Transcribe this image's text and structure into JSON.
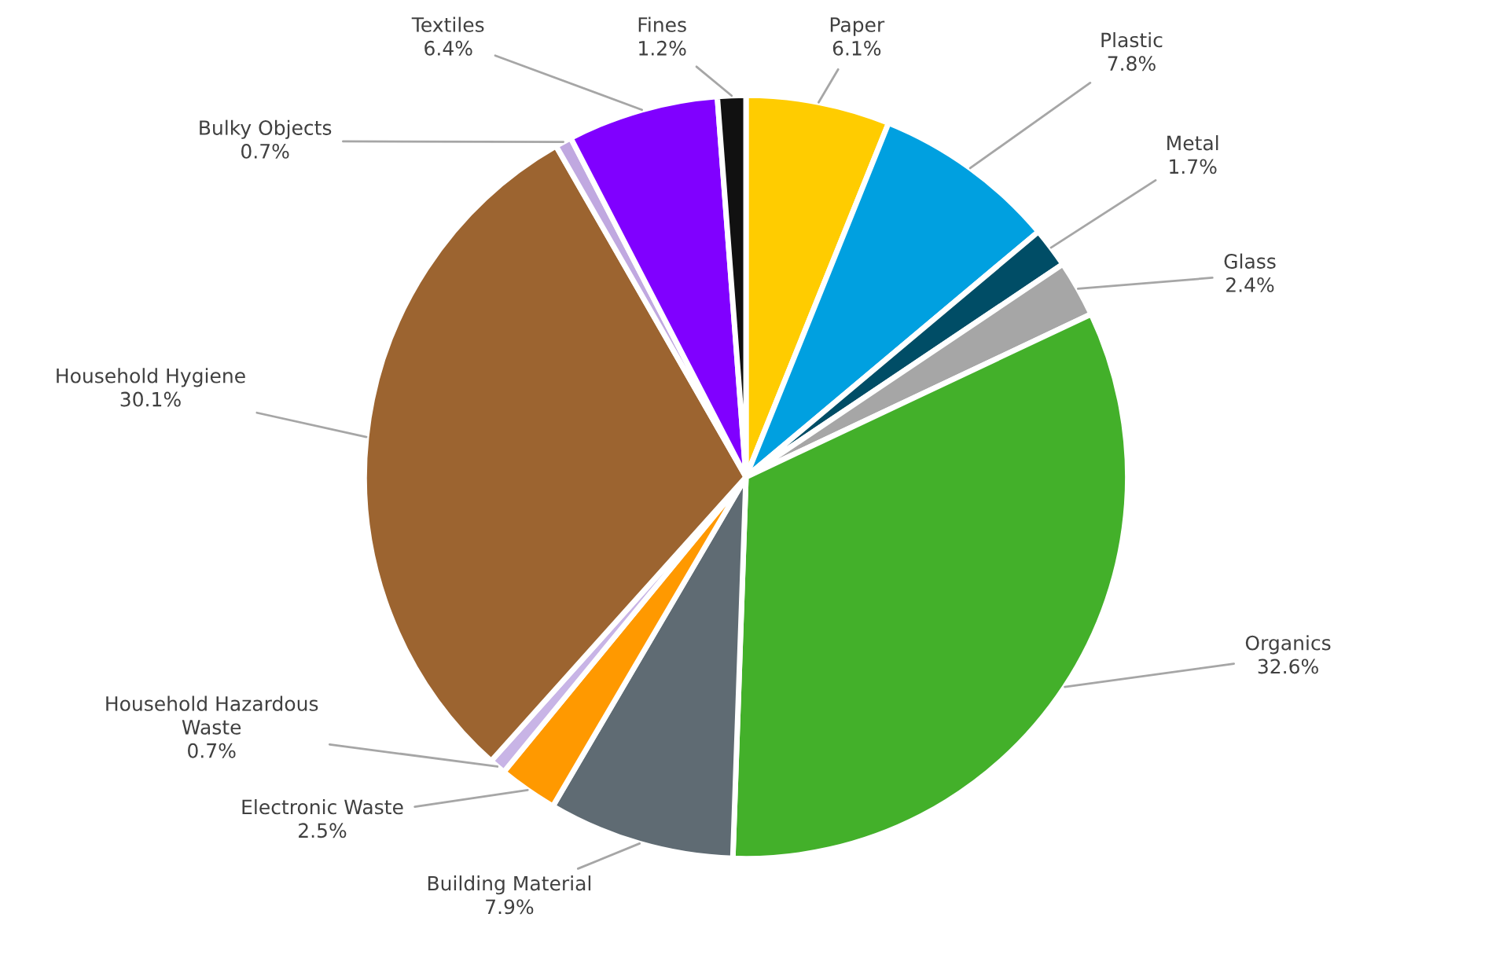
{
  "chart_data": {
    "type": "pie",
    "categories": [
      "Paper",
      "Plastic",
      "Metal",
      "Glass",
      "Organics",
      "Building Material",
      "Electronic Waste",
      "Household Hazardous\nWaste",
      "Household Hygiene",
      "Bulky Objects",
      "Textiles",
      "Fines"
    ],
    "values": [
      6.1,
      7.8,
      1.7,
      2.4,
      32.6,
      7.9,
      2.5,
      0.7,
      30.1,
      0.7,
      6.4,
      1.2
    ],
    "value_labels": [
      "6.1%",
      "7.8%",
      "1.7%",
      "2.4%",
      "32.6%",
      "7.9%",
      "2.5%",
      "0.7%",
      "30.1%",
      "0.7%",
      "6.4%",
      "1.2%"
    ],
    "colors": [
      "#ffcc00",
      "#00a0e0",
      "#004d66",
      "#a6a6a6",
      "#43b02a",
      "#5f6b73",
      "#ff9900",
      "#c8b4e6",
      "#9c6430",
      "#c0a8e0",
      "#8000ff",
      "#111111"
    ],
    "legend": false
  }
}
